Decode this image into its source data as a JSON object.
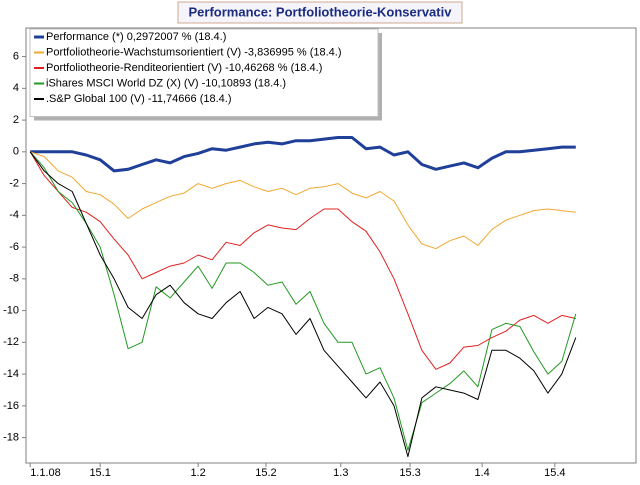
{
  "chart_data": {
    "type": "line",
    "title": "Performance: Portfoliotheorie-Konservativ",
    "x": [
      0,
      2,
      4,
      6,
      8,
      10,
      12,
      14,
      16,
      18,
      20,
      22,
      24,
      26,
      28,
      30,
      32,
      34,
      36,
      38,
      40,
      42,
      44,
      46,
      48,
      50,
      52,
      54,
      56,
      58,
      60,
      62,
      64,
      66,
      68,
      70,
      72,
      74,
      76,
      78
    ],
    "xlim": [
      -0.6,
      86.6
    ],
    "xticks": [
      {
        "value": 0,
        "label": "1.1.08"
      },
      {
        "value": 10,
        "label": "15.1"
      },
      {
        "value": 24,
        "label": "1.2"
      },
      {
        "value": 33.7,
        "label": "15.2"
      },
      {
        "value": 44.4,
        "label": "1.3"
      },
      {
        "value": 54.3,
        "label": "15.3"
      },
      {
        "value": 64.6,
        "label": "1.4"
      },
      {
        "value": 75,
        "label": "15.4"
      }
    ],
    "ylim": [
      -19.6,
      7.8
    ],
    "yticks": [
      -18,
      -16,
      -14,
      -12,
      -10,
      -8,
      -6,
      -4,
      -2,
      0,
      2,
      4,
      6
    ],
    "legend": "top-left",
    "series": [
      {
        "name": "Performance (*) 0,2972007 % (18.4.)",
        "color": "#1f3f99",
        "width": 3,
        "values": [
          0,
          0,
          0,
          0,
          -0.2,
          -0.5,
          -1.2,
          -1.1,
          -0.8,
          -0.5,
          -0.7,
          -0.3,
          -0.1,
          0.2,
          0.1,
          0.3,
          0.5,
          0.6,
          0.5,
          0.7,
          0.7,
          0.8,
          0.9,
          0.9,
          0.2,
          0.3,
          -0.2,
          0,
          -0.8,
          -1.1,
          -0.9,
          -0.7,
          -1.0,
          -0.4,
          0,
          0,
          0.1,
          0.2,
          0.3,
          0.3
        ]
      },
      {
        "name": "Portfoliotheorie-Wachstumsorientiert (V) -3,836995 % (18.4.)",
        "color": "#f0a830",
        "width": 1,
        "values": [
          0,
          -0.3,
          -1.2,
          -1.6,
          -2.5,
          -2.7,
          -3.3,
          -4.2,
          -3.6,
          -3.2,
          -2.8,
          -2.6,
          -2.0,
          -2.3,
          -2.0,
          -1.8,
          -2.2,
          -2.5,
          -2.3,
          -2.7,
          -2.3,
          -2.2,
          -2.0,
          -2.6,
          -2.9,
          -2.5,
          -3.1,
          -4.6,
          -5.8,
          -6.1,
          -5.6,
          -5.3,
          -5.9,
          -4.9,
          -4.3,
          -4.0,
          -3.7,
          -3.6,
          -3.7,
          -3.8
        ]
      },
      {
        "name": "Portfoliotheorie-Renditeorientiert (V) -10,46268 % (18.4.)",
        "color": "#e02020",
        "width": 1,
        "values": [
          0,
          -1.5,
          -2.5,
          -3.5,
          -3.8,
          -4.4,
          -5.5,
          -6.5,
          -8.0,
          -7.6,
          -7.2,
          -7.0,
          -6.5,
          -6.8,
          -5.7,
          -5.9,
          -5.1,
          -4.6,
          -4.8,
          -4.9,
          -4.2,
          -3.6,
          -3.6,
          -4.4,
          -5.0,
          -6.3,
          -8.0,
          -10.2,
          -12.5,
          -13.7,
          -13.3,
          -12.3,
          -12.2,
          -11.7,
          -11.3,
          -10.6,
          -10.3,
          -10.8,
          -10.3,
          -10.5
        ]
      },
      {
        "name": "iShares MSCI World DZ (X) (V) -10,10893 (18.4.)",
        "color": "#229922",
        "width": 1,
        "values": [
          0,
          -1.0,
          -2.5,
          -3.2,
          -4.5,
          -6.0,
          -9.0,
          -12.4,
          -12.0,
          -8.5,
          -9.2,
          -8.2,
          -7.2,
          -8.6,
          -7.0,
          -7.0,
          -7.6,
          -8.4,
          -8.2,
          -9.6,
          -8.8,
          -10.8,
          -12.0,
          -12.0,
          -14.0,
          -13.6,
          -15.5,
          -18.8,
          -15.8,
          -15.2,
          -14.6,
          -13.8,
          -14.8,
          -11.2,
          -10.8,
          -11.0,
          -12.6,
          -14.0,
          -13.2,
          -10.2
        ]
      },
      {
        "name": ".S&P Global 100 (V) -11,74666 (18.4.)",
        "color": "#000000",
        "width": 1,
        "values": [
          0,
          -1.2,
          -2.0,
          -2.5,
          -4.5,
          -6.5,
          -8.0,
          -9.8,
          -10.5,
          -9.0,
          -8.4,
          -9.5,
          -10.2,
          -10.5,
          -9.5,
          -8.8,
          -10.5,
          -9.8,
          -10.2,
          -11.5,
          -10.5,
          -12.5,
          -13.5,
          -14.5,
          -15.5,
          -14.5,
          -16.0,
          -19.2,
          -15.5,
          -14.8,
          -15.0,
          -15.2,
          -15.6,
          -12.5,
          -12.5,
          -13.0,
          -13.8,
          -15.2,
          -14.0,
          -11.7
        ]
      }
    ]
  }
}
